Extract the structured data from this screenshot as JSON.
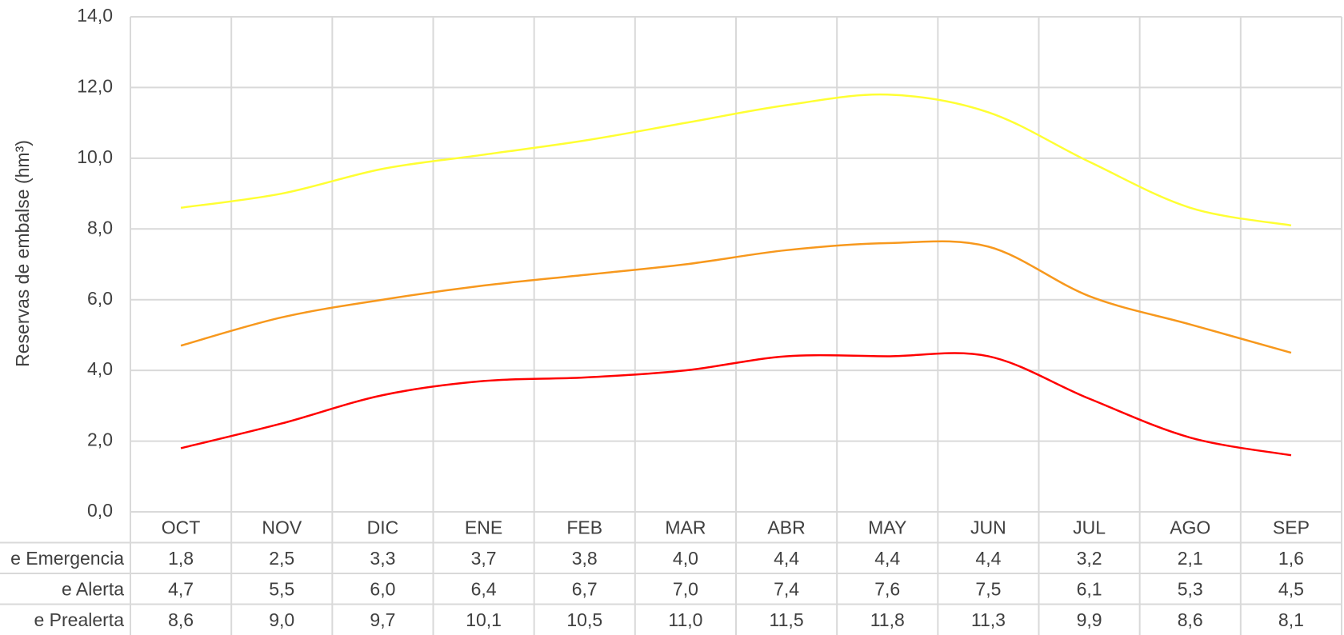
{
  "chart_data": {
    "type": "line",
    "y_label": "Reservas de embalse (hm³)",
    "categories": [
      "OCT",
      "NOV",
      "DIC",
      "ENE",
      "FEB",
      "MAR",
      "ABR",
      "MAY",
      "JUN",
      "JUL",
      "AGO",
      "SEP"
    ],
    "series": [
      {
        "name": "e Emergencia",
        "color": "#ff0000",
        "values": [
          1.8,
          2.5,
          3.3,
          3.7,
          3.8,
          4.0,
          4.4,
          4.4,
          4.4,
          3.2,
          2.1,
          1.6
        ],
        "value_labels": [
          "1,8",
          "2,5",
          "3,3",
          "3,7",
          "3,8",
          "4,0",
          "4,4",
          "4,4",
          "4,4",
          "3,2",
          "2,1",
          "1,6"
        ]
      },
      {
        "name": "e Alerta",
        "color": "#f7981d",
        "values": [
          4.7,
          5.5,
          6.0,
          6.4,
          6.7,
          7.0,
          7.4,
          7.6,
          7.5,
          6.1,
          5.3,
          4.5
        ],
        "value_labels": [
          "4,7",
          "5,5",
          "6,0",
          "6,4",
          "6,7",
          "7,0",
          "7,4",
          "7,6",
          "7,5",
          "6,1",
          "5,3",
          "4,5"
        ]
      },
      {
        "name": "e Prealerta",
        "color": "#ffff33",
        "values": [
          8.6,
          9.0,
          9.7,
          10.1,
          10.5,
          11.0,
          11.5,
          11.8,
          11.3,
          9.9,
          8.6,
          8.1
        ],
        "value_labels": [
          "8,6",
          "9,0",
          "9,7",
          "10,1",
          "10,5",
          "11,0",
          "11,5",
          "11,8",
          "11,3",
          "9,9",
          "8,6",
          "8,1"
        ]
      }
    ],
    "ylim": [
      0,
      14
    ],
    "yticks": [
      {
        "value": 0,
        "label": "0,0"
      },
      {
        "value": 2,
        "label": "2,0"
      },
      {
        "value": 4,
        "label": "4,0"
      },
      {
        "value": 6,
        "label": "6,0"
      },
      {
        "value": 8,
        "label": "8,0"
      },
      {
        "value": 10,
        "label": "10,0"
      },
      {
        "value": 12,
        "label": "12,0"
      },
      {
        "value": 14,
        "label": "14,0"
      }
    ],
    "grid": true
  }
}
